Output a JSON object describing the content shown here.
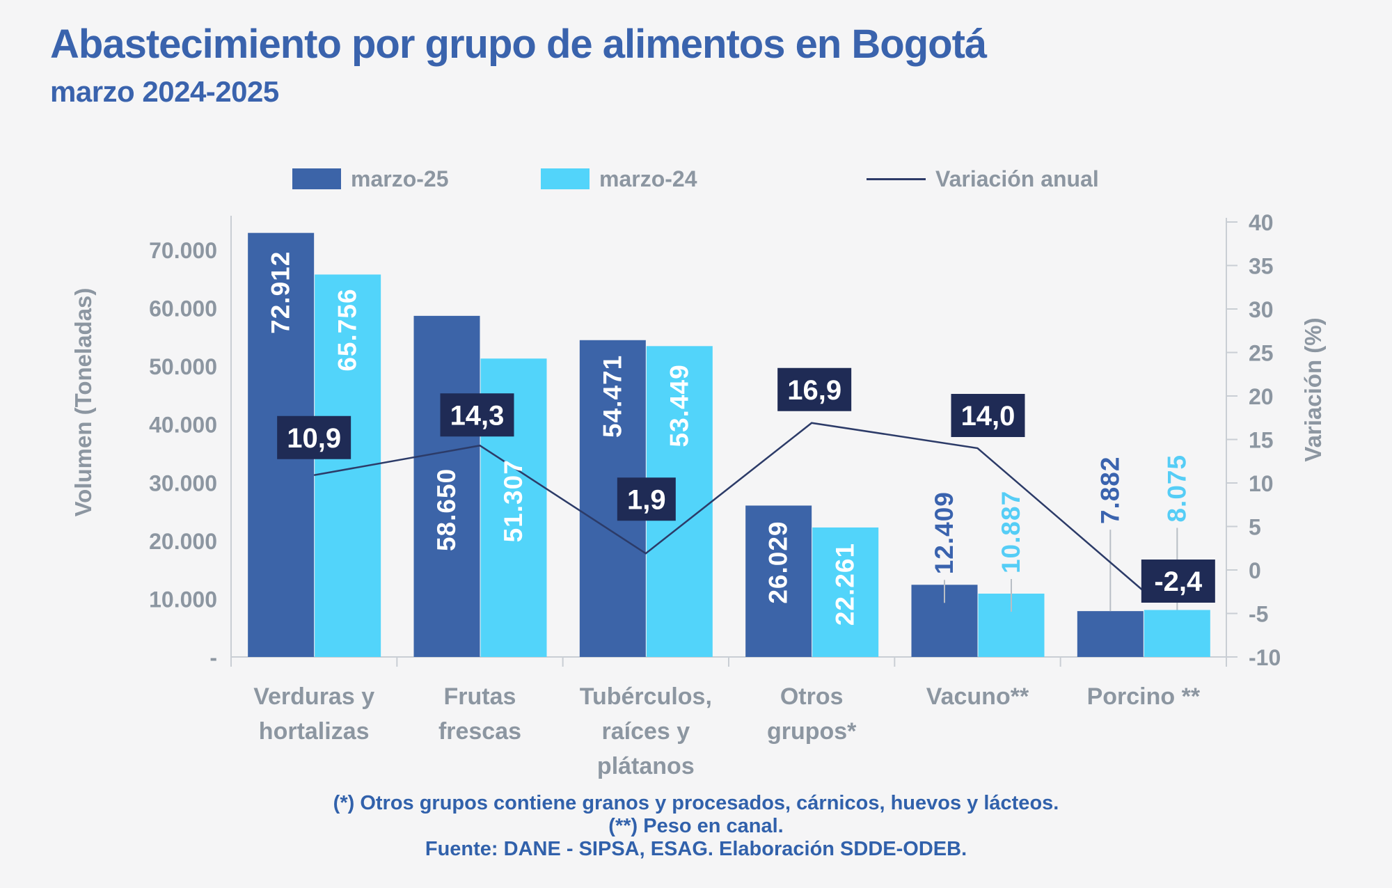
{
  "header": {
    "title": "Abastecimiento por grupo de alimentos en Bogotá",
    "subtitle": "marzo 2024-2025"
  },
  "legend": {
    "items": [
      {
        "label": "marzo-25",
        "type": "swatch",
        "color": "#3C64A8"
      },
      {
        "label": "marzo-24",
        "type": "swatch",
        "color": "#52D4FA"
      },
      {
        "label": "Variación anual",
        "type": "line",
        "color": "#2C3B68"
      }
    ]
  },
  "chart_data": {
    "type": "bar+line",
    "title": "Abastecimiento por grupo de alimentos en Bogotá",
    "subtitle": "marzo 2024-2025",
    "categories": [
      "Verduras y hortalizas",
      "Frutas frescas",
      "Tubérculos, raíces y plátanos",
      "Otros grupos*",
      "Vacuno**",
      "Porcino **"
    ],
    "category_label_lines": [
      [
        "Verduras y",
        "hortalizas"
      ],
      [
        "Frutas",
        "frescas"
      ],
      [
        "Tubérculos,",
        "raíces y",
        "plátanos"
      ],
      [
        "Otros",
        "grupos*"
      ],
      [
        "Vacuno**"
      ],
      [
        "Porcino **"
      ]
    ],
    "series": [
      {
        "name": "marzo-25",
        "color": "#3C64A8",
        "values": [
          72912,
          58650,
          54471,
          26029,
          12409,
          7882
        ],
        "value_labels": [
          "72.912",
          "58.650",
          "54.471",
          "26.029",
          "12.409",
          "7.882"
        ]
      },
      {
        "name": "marzo-24",
        "color": "#52D4FA",
        "values": [
          65756,
          51307,
          53449,
          22261,
          10887,
          8075
        ],
        "value_labels": [
          "65.756",
          "51.307",
          "53.449",
          "22.261",
          "10.887",
          "8.075"
        ]
      }
    ],
    "line_series": {
      "name": "Variación anual",
      "color": "#2C3B68",
      "values": [
        10.9,
        14.3,
        1.9,
        16.9,
        14.0,
        -2.4
      ],
      "value_labels": [
        "10,9",
        "14,3",
        "1,9",
        "16,9",
        "14,0",
        "-2,4"
      ]
    },
    "left_axis": {
      "title": "Volumen (Toneladas)",
      "min": 0,
      "max": 70000,
      "tick_step": 10000,
      "tick_labels": [
        "70.000",
        "60.000",
        "50.000",
        "40.000",
        "30.000",
        "20.000",
        "10.000",
        "-"
      ]
    },
    "right_axis": {
      "title": "Variación (%)",
      "min": -10,
      "max": 40,
      "tick_step": 5,
      "tick_labels": [
        "40",
        "35",
        "30",
        "25",
        "20",
        "15",
        "10",
        "5",
        "0",
        "-5",
        "-10"
      ]
    },
    "legend_position": "top",
    "grid": false
  },
  "footer": {
    "notes": [
      "(*) Otros grupos contiene granos y procesados, cárnicos, huevos y lácteos.",
      "(**) Peso en canal.",
      "Fuente: DANE - SIPSA, ESAG. Elaboración SDDE-ODEB."
    ]
  },
  "colors": {
    "background": "#F5F5F6",
    "title": "#3A63AD",
    "bar_marzo25": "#3C64A8",
    "bar_marzo24": "#52D4FA",
    "label_above_marzo25": "#3A63AE",
    "label_above_marzo24": "#55CDF6",
    "variation_line": "#2C3B68",
    "variation_box": "#1F2B55",
    "axis_text": "#8C96A1",
    "axis_line": "#C9CED4",
    "leader_line": "#B8BEC5",
    "footer_text": "#3161AB",
    "bar_value_text": "#FFFFFF"
  }
}
